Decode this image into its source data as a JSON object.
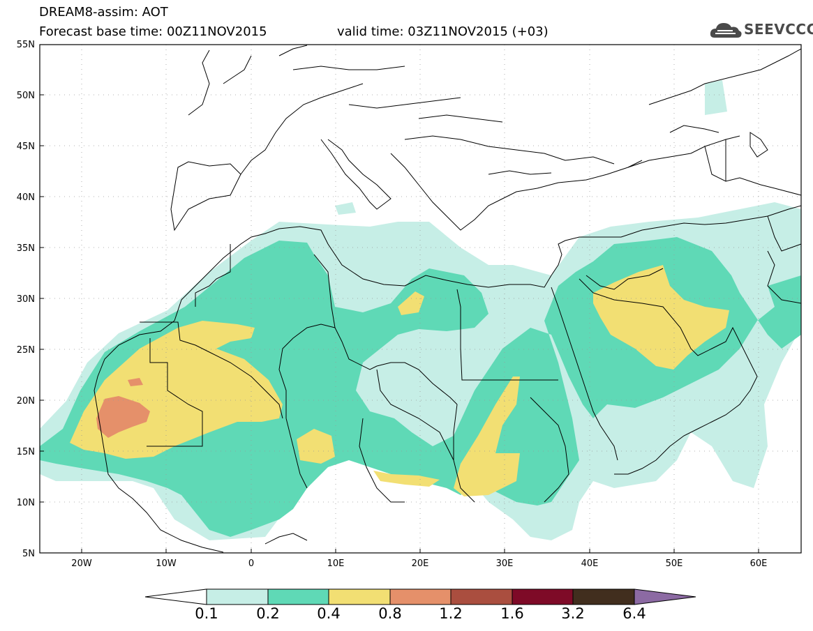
{
  "header": {
    "model_title": "DREAM8-assim: AOT",
    "base_time": "Forecast base time: 00Z11NOV2015",
    "valid_time": "valid time: 03Z11NOV2015 (+03)",
    "logo_text": "SEEVCCC",
    "logo_icon": "cloud-icon"
  },
  "map": {
    "lat_labels": [
      "55N",
      "50N",
      "45N",
      "40N",
      "35N",
      "30N",
      "25N",
      "20N",
      "15N",
      "10N",
      "5N"
    ],
    "lon_labels": [
      "20W",
      "10W",
      "0",
      "10E",
      "20E",
      "30E",
      "40E",
      "50E",
      "60E"
    ],
    "lat_range": [
      5,
      55
    ],
    "lon_range": [
      -25,
      65
    ],
    "grid": "dotted",
    "border_color": "#000000"
  },
  "colorbar": {
    "labels": [
      "0.1",
      "0.2",
      "0.4",
      "0.8",
      "1.2",
      "1.6",
      "3.2",
      "6.4"
    ],
    "colors": [
      "#ffffff",
      "#c6eee6",
      "#5fd9b6",
      "#f2df73",
      "#e5906a",
      "#aa4e3f",
      "#7e0a27",
      "#412e1e",
      "#8c6aa3"
    ]
  },
  "colors": {
    "aot_01_02": "#c6eee6",
    "aot_02_04": "#5fd9b6",
    "aot_04_08": "#f2df73",
    "aot_08_12": "#e5906a"
  }
}
